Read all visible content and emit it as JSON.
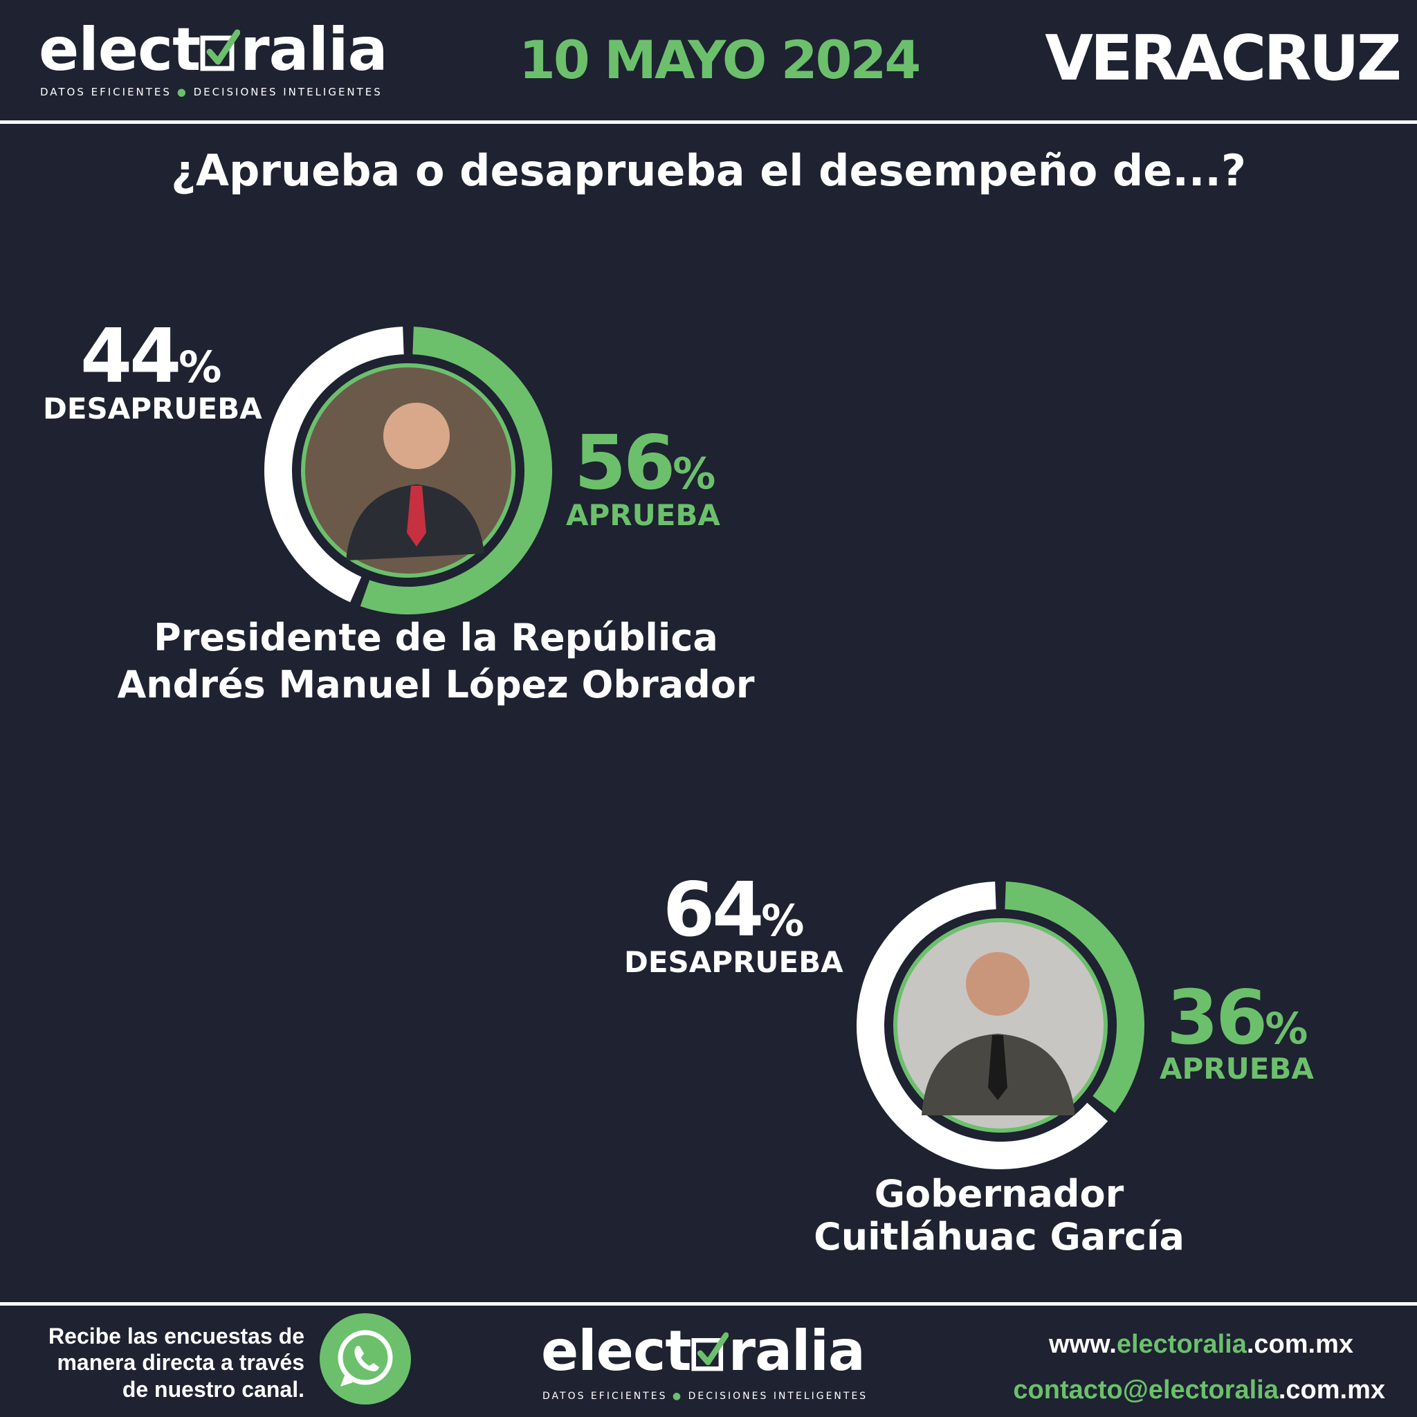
{
  "header": {
    "logo": {
      "pre": "elect",
      "post": "ralia",
      "tagline_left": "DATOS EFICIENTES",
      "tagline_right": "DECISIONES INTELIGENTES"
    },
    "date": "10 MAYO 2024",
    "region": "VERACRUZ"
  },
  "question": "¿Aprueba o desaprueba el desempeño de...?",
  "chart_data": [
    {
      "type": "pie",
      "categories": [
        "APRUEBA",
        "DESAPRUEBA"
      ],
      "values": [
        56,
        44
      ],
      "percent_sign": "%",
      "name_line1": "Presidente de la República",
      "name_line2": "Andrés Manuel López Obrador",
      "colors": {
        "approve": "#6cc06c",
        "disapprove": "#ffffff"
      }
    },
    {
      "type": "pie",
      "categories": [
        "APRUEBA",
        "DESAPRUEBA"
      ],
      "values": [
        36,
        64
      ],
      "percent_sign": "%",
      "name_line1": "Gobernador",
      "name_line2": "Cuitláhuac García",
      "colors": {
        "approve": "#6cc06c",
        "disapprove": "#ffffff"
      }
    }
  ],
  "footer": {
    "cta_line1": "Recibe las encuestas de",
    "cta_line2": "manera directa a través",
    "cta_line3": "de nuestro canal.",
    "whatsapp_icon": "whatsapp-icon",
    "website": {
      "pre": "www.",
      "brand": "electoralia",
      "post": ".com.mx"
    },
    "email": {
      "pre": "contacto@",
      "brand": "electoralia",
      "post": ".com.mx"
    }
  },
  "colors": {
    "background": "#1e2231",
    "accent": "#6cc06c",
    "text": "#ffffff"
  }
}
